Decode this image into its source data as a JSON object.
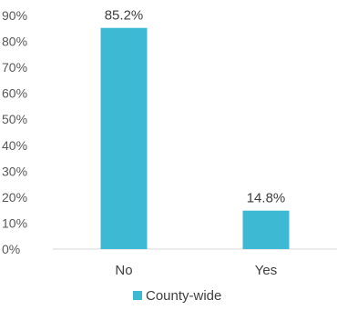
{
  "chart_data": {
    "type": "bar",
    "categories": [
      "No",
      "Yes"
    ],
    "series": [
      {
        "name": "County-wide",
        "values": [
          85.2,
          14.8
        ],
        "color": "#3db9d3"
      }
    ],
    "data_labels": [
      "85.2%",
      "14.8%"
    ],
    "y_ticks": [
      "0%",
      "10%",
      "20%",
      "30%",
      "40%",
      "50%",
      "60%",
      "70%",
      "80%",
      "90%"
    ],
    "ylim": [
      0,
      90
    ],
    "grid": false,
    "legend_position": "bottom"
  }
}
